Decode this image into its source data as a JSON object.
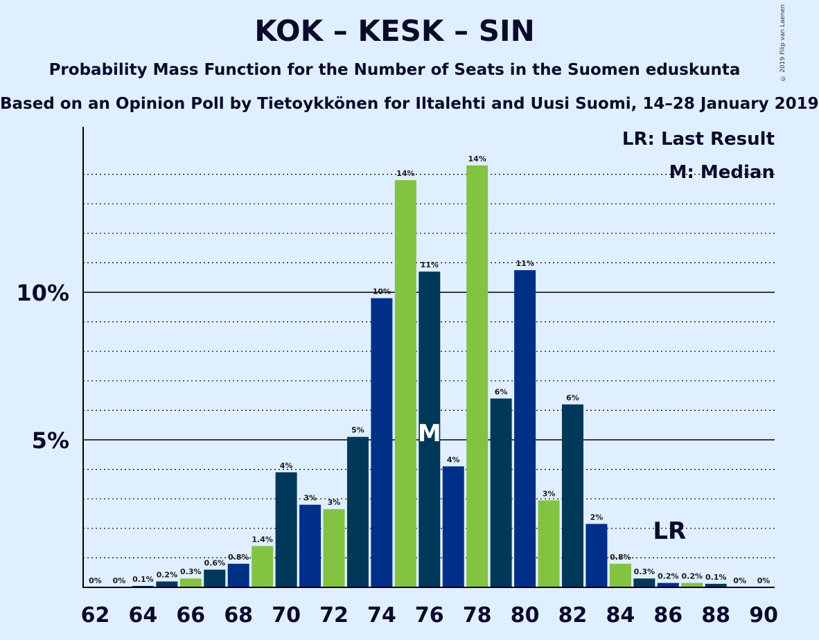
{
  "title": "KOK – KESK – SIN",
  "subtitle": "Probability Mass Function for the Number of Seats in the Suomen eduskunta",
  "source": "Based on an Opinion Poll by Tietoykkönen for Iltalehti and Uusi Suomi, 14–28 January 2019",
  "copyright": "© 2019 Filip van Laenen",
  "legend": {
    "last_result": "LR: Last Result",
    "median": "M: Median"
  },
  "markers": {
    "median_label": "M",
    "median_seat": 76,
    "last_result_label": "LR",
    "last_result_seat": 86
  },
  "colors": {
    "background": "#e0efff",
    "kok": "#003859",
    "kesk": "#82c341",
    "sin": "#002f87"
  },
  "chart_data": {
    "type": "bar",
    "xlim": [
      62,
      90
    ],
    "ylim": [
      0,
      15.5
    ],
    "y_ticks": [
      5,
      10
    ],
    "y_tick_labels": [
      "5%",
      "10%"
    ],
    "x_tick_labels": [
      "62",
      "64",
      "66",
      "68",
      "70",
      "72",
      "74",
      "76",
      "78",
      "80",
      "82",
      "84",
      "86",
      "88",
      "90"
    ],
    "x": [
      62,
      63,
      64,
      65,
      66,
      67,
      68,
      69,
      70,
      71,
      72,
      73,
      74,
      75,
      76,
      77,
      78,
      79,
      80,
      81,
      82,
      83,
      84,
      85,
      86,
      87,
      88,
      89,
      90
    ],
    "values": [
      0,
      0,
      0.05,
      0.2,
      0.3,
      0.6,
      0.8,
      1.4,
      3.9,
      2.8,
      2.65,
      5.1,
      9.8,
      13.8,
      10.7,
      4.1,
      14.3,
      6.4,
      10.75,
      2.95,
      6.2,
      2.15,
      0.8,
      0.3,
      0.15,
      0.15,
      0.12,
      0,
      0
    ],
    "labels": [
      "0%",
      "0%",
      "0.1%",
      "0.2%",
      "0.3%",
      "0.6%",
      "0.8%",
      "1.4%",
      "4%",
      "3%",
      "3%",
      "5%",
      "10%",
      "14%",
      "11%",
      "4%",
      "14%",
      "6%",
      "11%",
      "3%",
      "6%",
      "2%",
      "0.8%",
      "0.3%",
      "0.2%",
      "0.2%",
      "0.1%",
      "0%",
      "0%"
    ],
    "party": [
      "kok",
      "kesk",
      "sin",
      "kok",
      "kesk",
      "kok",
      "sin",
      "kesk",
      "kok",
      "sin",
      "kesk",
      "kok",
      "sin",
      "kesk",
      "kok",
      "sin",
      "kesk",
      "kok",
      "sin",
      "kesk",
      "kok",
      "sin",
      "kesk",
      "kok",
      "sin",
      "kesk",
      "kok",
      "sin",
      "kesk"
    ]
  }
}
